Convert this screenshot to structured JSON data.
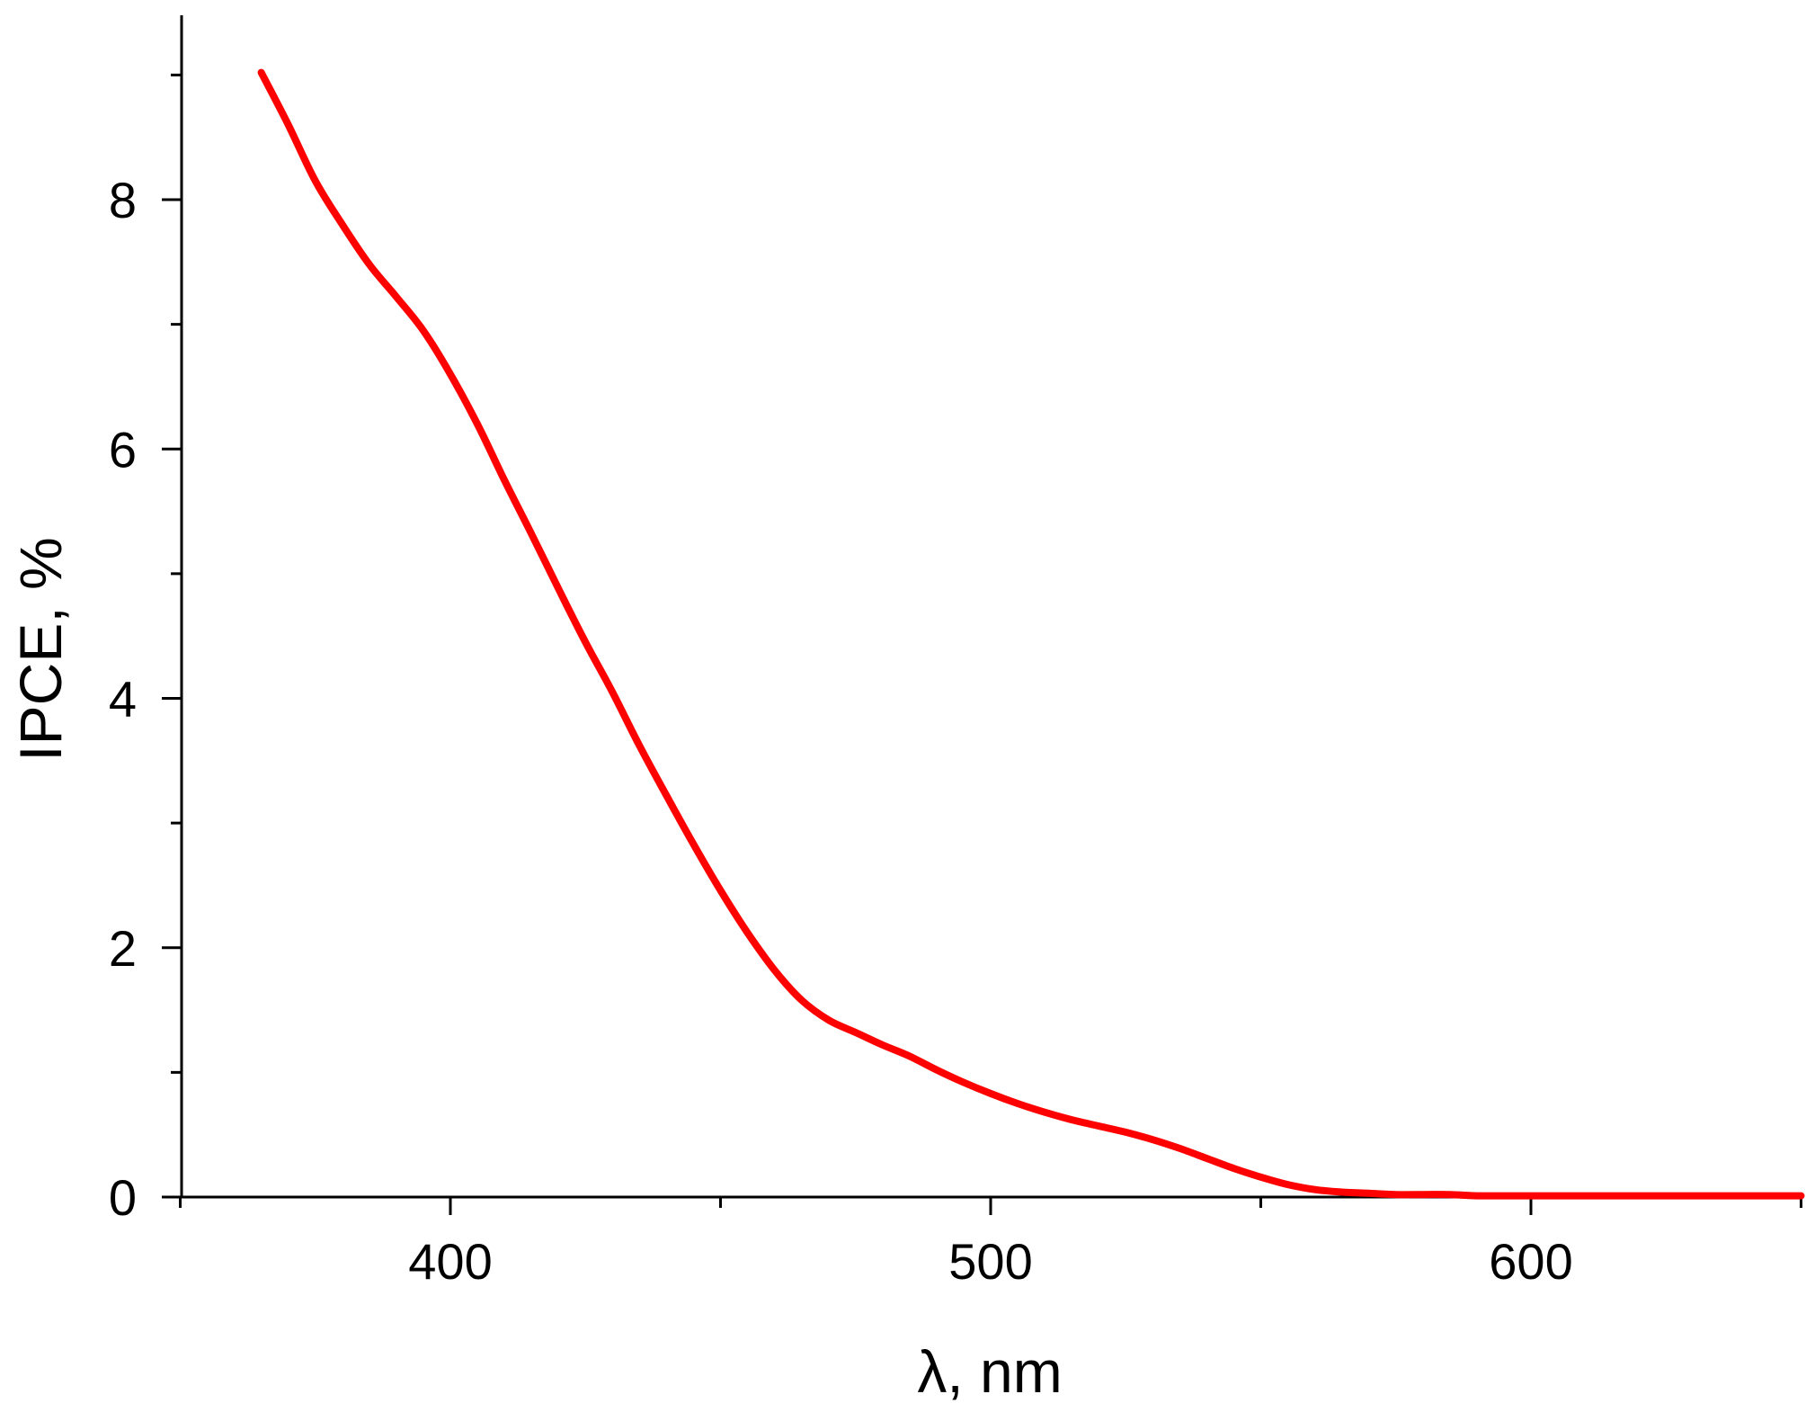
{
  "chart_data": {
    "type": "line",
    "title": "",
    "xlabel": "λ, nm",
    "ylabel": "IPCE, %",
    "xlim": [
      350,
      650
    ],
    "ylim": [
      0,
      9.3
    ],
    "x_ticks": [
      {
        "value": 400,
        "label": "400"
      },
      {
        "value": 500,
        "label": "500"
      },
      {
        "value": 600,
        "label": "600"
      }
    ],
    "x_minor_ticks": [
      350,
      450,
      550,
      650
    ],
    "y_ticks": [
      {
        "value": 0,
        "label": "0"
      },
      {
        "value": 2,
        "label": "2"
      },
      {
        "value": 4,
        "label": "4"
      },
      {
        "value": 6,
        "label": "6"
      },
      {
        "value": 8,
        "label": "8"
      }
    ],
    "y_minor_ticks": [
      1,
      3,
      5,
      7,
      9
    ],
    "grid": false,
    "legend": "none",
    "series": [
      {
        "color": "#ff0000",
        "x": [
          365,
          370,
          375,
          380,
          385,
          390,
          395,
          400,
          405,
          410,
          415,
          420,
          425,
          430,
          435,
          440,
          445,
          450,
          455,
          460,
          465,
          470,
          475,
          480,
          485,
          490,
          495,
          500,
          505,
          510,
          515,
          520,
          525,
          530,
          535,
          540,
          545,
          550,
          555,
          560,
          565,
          570,
          575,
          580,
          585,
          590,
          595,
          600,
          610,
          620,
          630,
          640,
          650
        ],
        "y": [
          9.02,
          8.6,
          8.15,
          7.8,
          7.48,
          7.22,
          6.95,
          6.6,
          6.2,
          5.75,
          5.32,
          4.88,
          4.45,
          4.05,
          3.62,
          3.22,
          2.83,
          2.46,
          2.12,
          1.82,
          1.58,
          1.42,
          1.32,
          1.22,
          1.13,
          1.02,
          0.92,
          0.83,
          0.75,
          0.68,
          0.62,
          0.57,
          0.52,
          0.46,
          0.39,
          0.31,
          0.23,
          0.16,
          0.1,
          0.06,
          0.04,
          0.03,
          0.02,
          0.02,
          0.02,
          0.01,
          0.01,
          0.01,
          0.01,
          0.01,
          0.01,
          0.01,
          0.01
        ]
      }
    ]
  }
}
